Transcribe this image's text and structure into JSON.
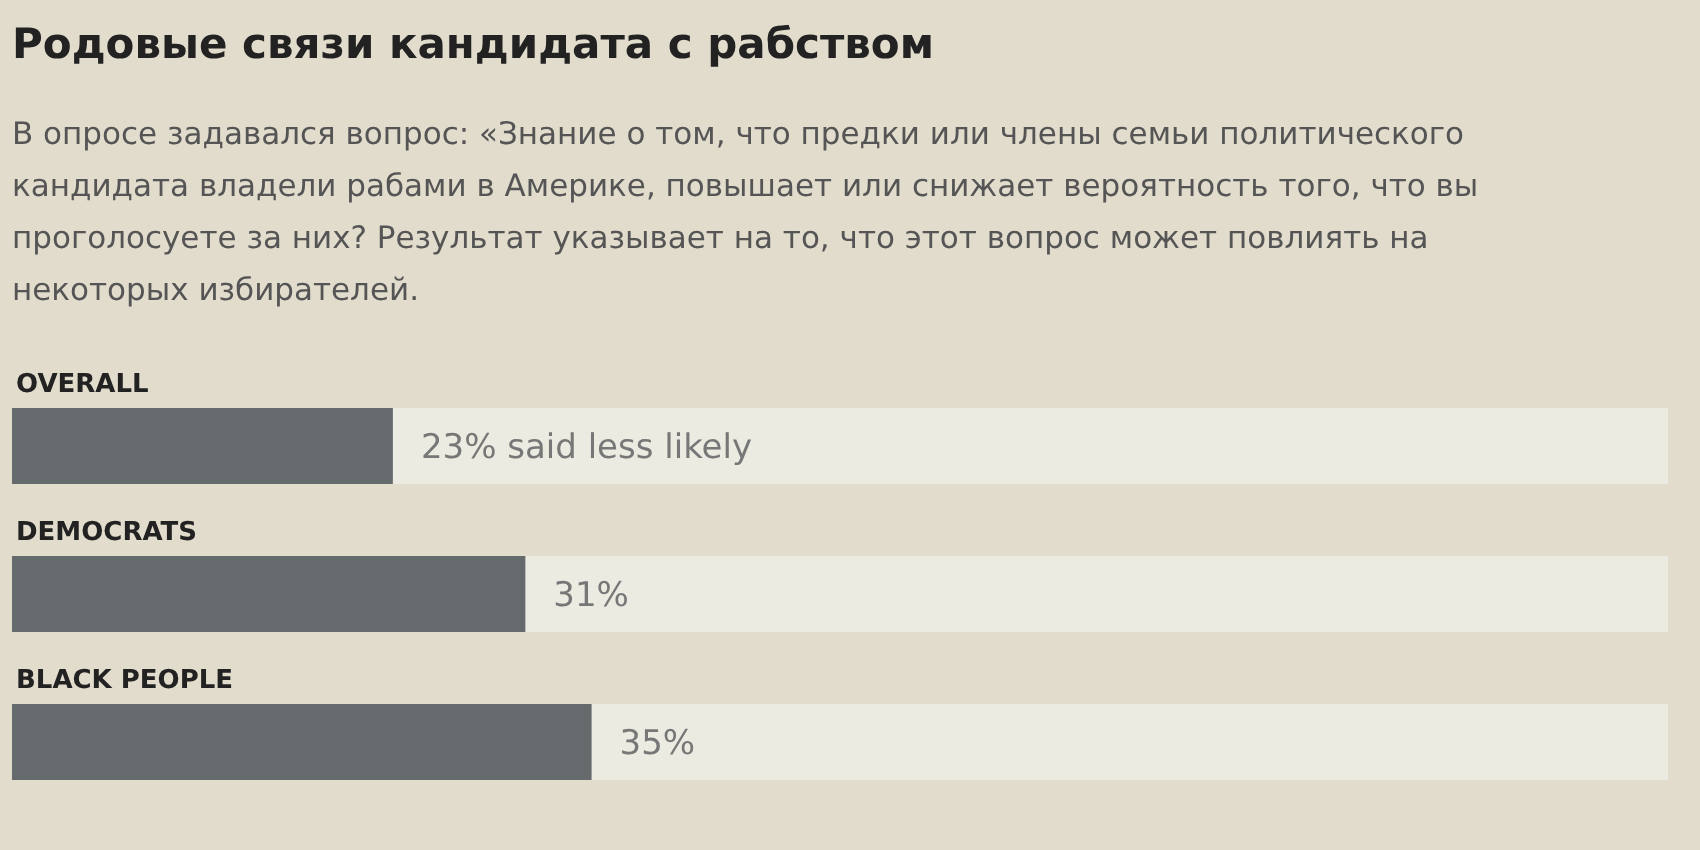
{
  "chart_data": {
    "type": "bar",
    "orientation": "horizontal",
    "title": "Родовые связи кандидата с рабством",
    "subtitle": "В опросе задавался вопрос: «Знание о том, что предки или члены семьи политического кандидата владели рабами в Америке, повышает или снижает вероятность того, что вы проголосуете за них? Результат указывает на то, что этот вопрос может повлиять на некоторых избирателей.",
    "categories": [
      "OVERALL",
      "DEMOCRATS",
      "BLACK PEOPLE"
    ],
    "values": [
      23,
      31,
      35
    ],
    "value_labels": [
      "23% said less likely",
      "31%",
      "35%"
    ],
    "color": "#656b6d",
    "xlim": [
      0,
      100
    ],
    "tick_labels": false
  }
}
